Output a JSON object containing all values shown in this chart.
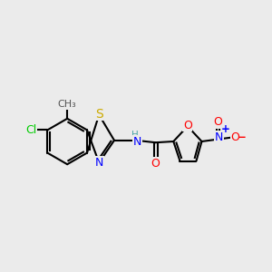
{
  "background_color": "#ebebeb",
  "bond_color": "#000000",
  "bond_lw": 1.5,
  "atom_colors": {
    "S": "#ccaa00",
    "N": "#0000ff",
    "O": "#ff0000",
    "Cl": "#00cc00",
    "C": "#000000",
    "H": "#4da6a6"
  },
  "font_size": 9,
  "font_size_small": 7.5
}
